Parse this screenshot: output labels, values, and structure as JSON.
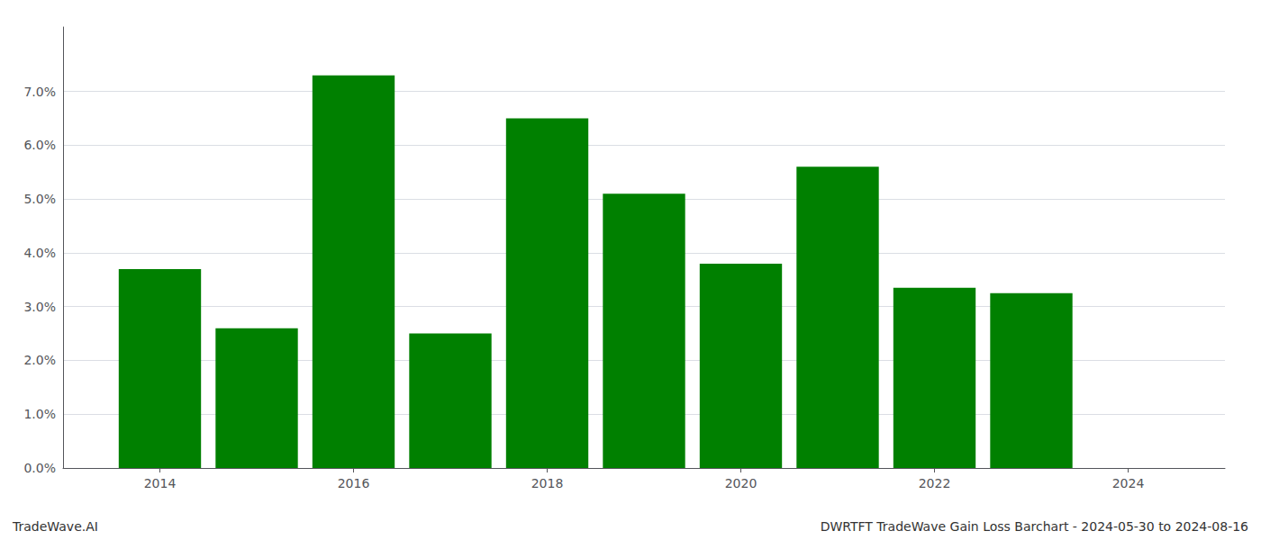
{
  "chart_data": {
    "type": "bar",
    "x": [
      2014,
      2015,
      2016,
      2017,
      2018,
      2019,
      2020,
      2021,
      2022,
      2023
    ],
    "values": [
      0.037,
      0.026,
      0.073,
      0.025,
      0.065,
      0.051,
      0.038,
      0.056,
      0.0335,
      0.0325
    ],
    "color": "#008000",
    "xlim": [
      2013.0,
      2025.0
    ],
    "xticks": [
      2014,
      2016,
      2018,
      2020,
      2022,
      2024
    ],
    "ylim": [
      0,
      0.082
    ],
    "yticks": [
      {
        "value": 0.0,
        "label": "0.0%"
      },
      {
        "value": 0.01,
        "label": "1.0%"
      },
      {
        "value": 0.02,
        "label": "2.0%"
      },
      {
        "value": 0.03,
        "label": "3.0%"
      },
      {
        "value": 0.04,
        "label": "4.0%"
      },
      {
        "value": 0.05,
        "label": "5.0%"
      },
      {
        "value": 0.06,
        "label": "6.0%"
      },
      {
        "value": 0.07,
        "label": "7.0%"
      }
    ],
    "grid": true,
    "annotations": [
      "TradeWave.AI",
      "DWRTFT TradeWave Gain Loss Barchart - 2024-05-30 to 2024-08-16"
    ]
  }
}
